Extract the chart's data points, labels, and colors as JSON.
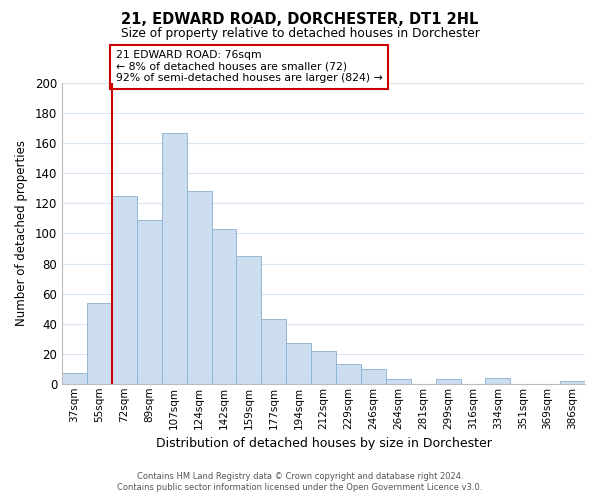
{
  "title": "21, EDWARD ROAD, DORCHESTER, DT1 2HL",
  "subtitle": "Size of property relative to detached houses in Dorchester",
  "xlabel": "Distribution of detached houses by size in Dorchester",
  "ylabel": "Number of detached properties",
  "bar_labels": [
    "37sqm",
    "55sqm",
    "72sqm",
    "89sqm",
    "107sqm",
    "124sqm",
    "142sqm",
    "159sqm",
    "177sqm",
    "194sqm",
    "212sqm",
    "229sqm",
    "246sqm",
    "264sqm",
    "281sqm",
    "299sqm",
    "316sqm",
    "334sqm",
    "351sqm",
    "369sqm",
    "386sqm"
  ],
  "bar_heights": [
    7,
    54,
    125,
    109,
    167,
    128,
    103,
    85,
    43,
    27,
    22,
    13,
    10,
    3,
    0,
    3,
    0,
    4,
    0,
    0,
    2
  ],
  "bar_color": "#ccddf0",
  "bar_edge_color": "#8ab0d0",
  "ylim": [
    0,
    200
  ],
  "yticks": [
    0,
    20,
    40,
    60,
    80,
    100,
    120,
    140,
    160,
    180,
    200
  ],
  "vline_x_bar_idx": 2,
  "vline_color": "#cc0000",
  "annotation_text": "21 EDWARD ROAD: 76sqm\n← 8% of detached houses are smaller (72)\n92% of semi-detached houses are larger (824) →",
  "annotation_box_color": "#ffffff",
  "annotation_box_edge": "#cc0000",
  "grid_color": "#d8e4f0",
  "footer_line1": "Contains HM Land Registry data © Crown copyright and database right 2024.",
  "footer_line2": "Contains public sector information licensed under the Open Government Licence v3.0."
}
